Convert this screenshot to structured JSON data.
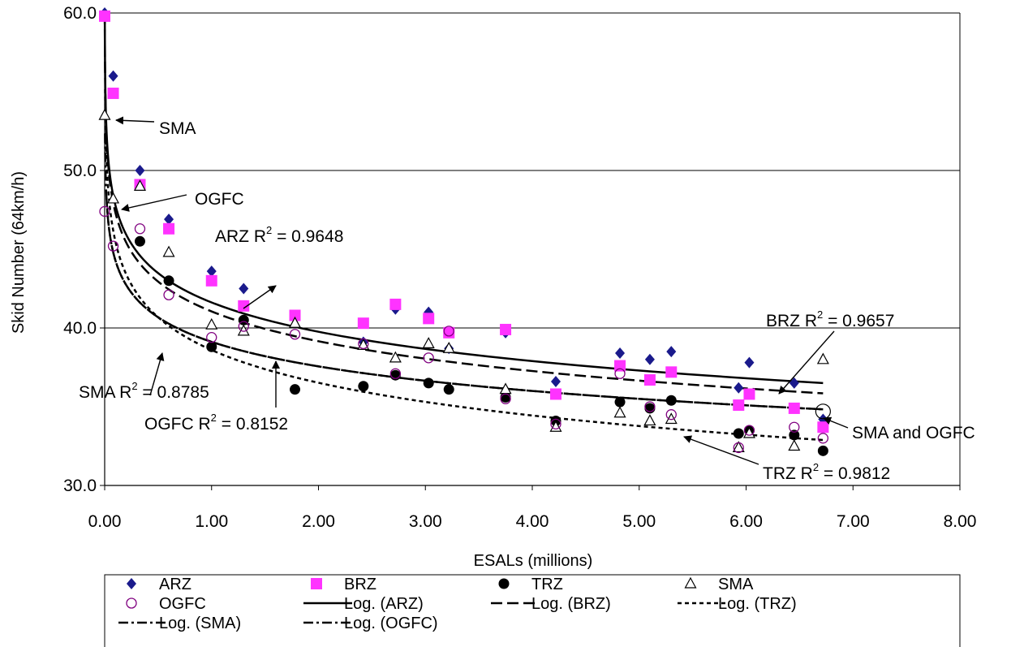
{
  "chart_data": {
    "type": "scatter",
    "xlabel": "ESALs (millions)",
    "ylabel": "Skid Number (64km/h)",
    "xlim": [
      0,
      8
    ],
    "ylim": [
      30,
      60
    ],
    "x_ticks": [
      "0.00",
      "1.00",
      "2.00",
      "3.00",
      "4.00",
      "5.00",
      "6.00",
      "7.00",
      "8.00"
    ],
    "y_ticks": [
      "30.0",
      "40.0",
      "50.0",
      "60.0"
    ],
    "grid": "horizontal",
    "legend_position": "bottom",
    "colors": {
      "ARZ": "#1a1a8c",
      "BRZ": "#ff33ff",
      "TRZ": "#000000",
      "SMA": "#000000",
      "OGFC": "#800080"
    },
    "series": [
      {
        "name": "ARZ",
        "marker": "diamond",
        "points": [
          [
            0.0,
            60.0
          ],
          [
            0.08,
            56.0
          ],
          [
            0.33,
            50.0
          ],
          [
            0.6,
            46.9
          ],
          [
            1.0,
            43.6
          ],
          [
            1.3,
            42.5
          ],
          [
            1.78,
            40.6
          ],
          [
            2.42,
            39.1
          ],
          [
            2.72,
            41.2
          ],
          [
            3.03,
            41.0
          ],
          [
            3.22,
            38.7
          ],
          [
            3.75,
            39.7
          ],
          [
            4.22,
            36.6
          ],
          [
            4.82,
            38.4
          ],
          [
            5.1,
            38.0
          ],
          [
            5.3,
            38.5
          ],
          [
            5.93,
            36.2
          ],
          [
            6.03,
            37.8
          ],
          [
            6.45,
            36.5
          ],
          [
            6.72,
            34.2
          ]
        ]
      },
      {
        "name": "BRZ",
        "marker": "square",
        "points": [
          [
            0.0,
            59.8
          ],
          [
            0.08,
            54.9
          ],
          [
            0.33,
            49.1
          ],
          [
            0.6,
            46.3
          ],
          [
            1.0,
            43.0
          ],
          [
            1.3,
            41.4
          ],
          [
            1.78,
            40.8
          ],
          [
            2.42,
            40.3
          ],
          [
            2.72,
            41.5
          ],
          [
            3.03,
            40.6
          ],
          [
            3.22,
            39.7
          ],
          [
            3.75,
            39.9
          ],
          [
            4.22,
            35.8
          ],
          [
            4.82,
            37.6
          ],
          [
            5.1,
            36.7
          ],
          [
            5.3,
            37.2
          ],
          [
            5.93,
            35.1
          ],
          [
            6.03,
            35.8
          ],
          [
            6.45,
            34.9
          ],
          [
            6.72,
            33.7
          ]
        ]
      },
      {
        "name": "TRZ",
        "marker": "circle-filled",
        "points": [
          [
            0.33,
            45.5
          ],
          [
            0.6,
            43.0
          ],
          [
            1.0,
            38.8
          ],
          [
            1.3,
            40.5
          ],
          [
            1.78,
            36.1
          ],
          [
            2.42,
            36.3
          ],
          [
            2.72,
            37.0
          ],
          [
            3.03,
            36.5
          ],
          [
            3.22,
            36.1
          ],
          [
            3.75,
            35.6
          ],
          [
            4.22,
            34.1
          ],
          [
            4.82,
            35.3
          ],
          [
            5.1,
            34.9
          ],
          [
            5.3,
            35.4
          ],
          [
            5.93,
            33.3
          ],
          [
            6.03,
            33.5
          ],
          [
            6.45,
            33.2
          ],
          [
            6.72,
            32.2
          ]
        ]
      },
      {
        "name": "SMA",
        "marker": "triangle-open",
        "points": [
          [
            0.0,
            53.5
          ],
          [
            0.08,
            48.2
          ],
          [
            0.33,
            49.0
          ],
          [
            0.6,
            44.8
          ],
          [
            1.0,
            40.2
          ],
          [
            1.3,
            39.8
          ],
          [
            1.78,
            40.3
          ],
          [
            2.42,
            38.9
          ],
          [
            2.72,
            38.1
          ],
          [
            3.03,
            39.0
          ],
          [
            3.22,
            38.7
          ],
          [
            3.75,
            36.1
          ],
          [
            4.22,
            33.7
          ],
          [
            4.82,
            34.6
          ],
          [
            5.1,
            34.1
          ],
          [
            5.3,
            34.2
          ],
          [
            5.93,
            32.4
          ],
          [
            6.03,
            33.3
          ],
          [
            6.45,
            32.5
          ],
          [
            6.72,
            38.0
          ]
        ]
      },
      {
        "name": "OGFC",
        "marker": "circle-open",
        "points": [
          [
            0.0,
            47.4
          ],
          [
            0.08,
            45.2
          ],
          [
            0.33,
            46.3
          ],
          [
            0.6,
            42.1
          ],
          [
            1.0,
            39.4
          ],
          [
            1.3,
            40.1
          ],
          [
            1.78,
            39.6
          ],
          [
            2.42,
            39.0
          ],
          [
            2.72,
            37.1
          ],
          [
            3.03,
            38.1
          ],
          [
            3.22,
            39.8
          ],
          [
            3.75,
            35.5
          ],
          [
            4.22,
            33.9
          ],
          [
            4.82,
            37.1
          ],
          [
            5.1,
            35.0
          ],
          [
            5.3,
            34.5
          ],
          [
            5.93,
            32.4
          ],
          [
            6.03,
            33.5
          ],
          [
            6.45,
            33.7
          ],
          [
            6.72,
            33.0
          ]
        ]
      }
    ],
    "trendlines": [
      {
        "name": "Log. (ARZ)",
        "style": "solid",
        "a": 41.62,
        "b": 2.686,
        "x_range": [
          0.0001,
          6.72
        ]
      },
      {
        "name": "Log. (BRZ)",
        "style": "long-dash",
        "a": 41.05,
        "b": 2.731,
        "x_range": [
          0.0001,
          6.72
        ]
      },
      {
        "name": "Log. (TRZ)",
        "style": "short-dash",
        "a": 38.6,
        "b": 3.0,
        "x_range": [
          0.004,
          6.72
        ]
      },
      {
        "name": "Log. (SMA)",
        "style": "dash-dot",
        "a": 39.12,
        "b": 2.25,
        "x_range": [
          0.0028,
          6.72
        ]
      },
      {
        "name": "Log. (OGFC)",
        "style": "dash-dot",
        "a": 39.12,
        "b": 2.25,
        "x_range": [
          0.017,
          6.72
        ]
      }
    ],
    "annotations": [
      {
        "id": "ann_sma",
        "text": "SMA"
      },
      {
        "id": "ann_ogfc",
        "text": "OGFC"
      },
      {
        "id": "ann_arz",
        "text": "ARZ R",
        "exp": "2",
        "tail": " = 0.9648"
      },
      {
        "id": "ann_brz",
        "text": "BRZ R",
        "exp": "2",
        "tail": " = 0.9657"
      },
      {
        "id": "ann_sma_r2",
        "text": "SMA R",
        "exp": "2",
        "tail": " = 0.8785"
      },
      {
        "id": "ann_ogfc_r2",
        "text": "OGFC R",
        "exp": "2",
        "tail": " = 0.8152"
      },
      {
        "id": "ann_sma_ogfc",
        "text": "SMA and OGFC"
      },
      {
        "id": "ann_trz",
        "text": "TRZ R",
        "exp": "2",
        "tail": " = 0.9812"
      }
    ],
    "legend": [
      {
        "label": "ARZ",
        "symbol": "diamond"
      },
      {
        "label": "BRZ",
        "symbol": "square"
      },
      {
        "label": "TRZ",
        "symbol": "circle-filled"
      },
      {
        "label": "SMA",
        "symbol": "triangle-open"
      },
      {
        "label": "OGFC",
        "symbol": "circle-open"
      },
      {
        "label": "Log. (ARZ)",
        "symbol": "solid"
      },
      {
        "label": "Log. (BRZ)",
        "symbol": "long-dash"
      },
      {
        "label": "Log. (TRZ)",
        "symbol": "short-dash"
      },
      {
        "label": "Log. (SMA)",
        "symbol": "dash-dot"
      },
      {
        "label": "Log. (OGFC)",
        "symbol": "dash-dot"
      }
    ]
  }
}
